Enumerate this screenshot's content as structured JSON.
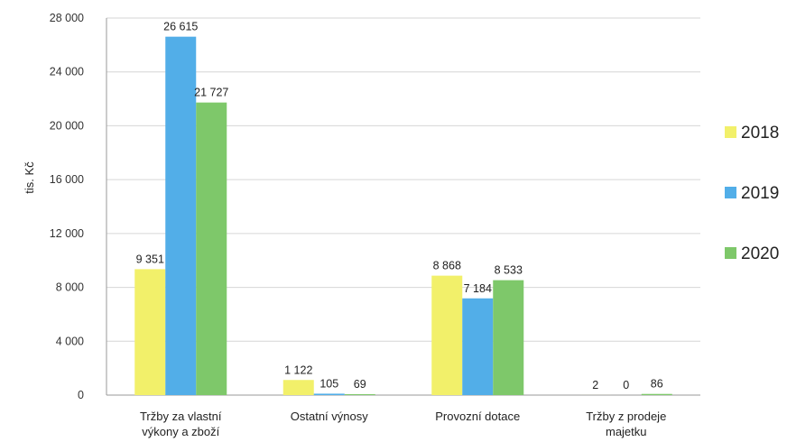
{
  "chart_data": {
    "type": "bar",
    "ylabel": "tis. Kč",
    "ylim": [
      0,
      28000
    ],
    "yticks": [
      0,
      4000,
      8000,
      12000,
      16000,
      20000,
      24000,
      28000
    ],
    "ytick_labels": [
      "0",
      "4 000",
      "8 000",
      "12 000",
      "16 000",
      "20 000",
      "24 000",
      "28 000"
    ],
    "categories": [
      [
        "Tržby za vlastní",
        "výkony a zboží"
      ],
      [
        "Ostatní výnosy"
      ],
      [
        "Provozní dotace"
      ],
      [
        "Tržby z prodeje",
        "majetku"
      ]
    ],
    "series": [
      {
        "name": "2018",
        "color": "#f2f06a",
        "values": [
          9351,
          1122,
          8868,
          2
        ],
        "labels": [
          "9 351",
          "1 122",
          "8 868",
          "2"
        ]
      },
      {
        "name": "2019",
        "color": "#52aee8",
        "values": [
          26615,
          105,
          7184,
          0
        ],
        "labels": [
          "26 615",
          "105",
          "7 184",
          "0"
        ]
      },
      {
        "name": "2020",
        "color": "#7ec86a",
        "values": [
          21727,
          69,
          8533,
          86
        ],
        "labels": [
          "21 727",
          "69",
          "8 533",
          "86"
        ]
      }
    ],
    "grid": true,
    "legend_position": "right"
  }
}
